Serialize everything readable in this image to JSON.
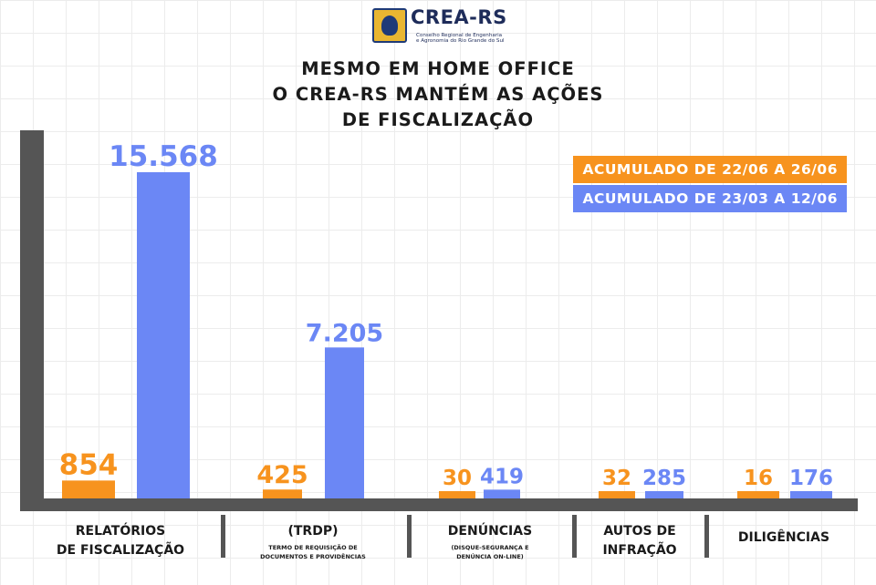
{
  "header": {
    "logo_name": "CREA-RS",
    "logo_sub_1": "Conselho Regional de Engenharia",
    "logo_sub_2": "e Agronomia do Rio Grande do Sul",
    "logo_icon": "crea-rs-seal-icon"
  },
  "title_lines": [
    "MESMO EM HOME OFFICE",
    "O CREA-RS MANTÉM AS AÇÕES",
    "DE FISCALIZAÇÃO"
  ],
  "chart_data": {
    "type": "bar",
    "categories": [
      "RELATÓRIOS DE FISCALIZAÇÃO",
      "(TRDP)",
      "DENÚNCIAS",
      "AUTOS DE INFRAÇÃO",
      "DILIGÊNCIAS"
    ],
    "category_lines": [
      [
        "RELATÓRIOS",
        "DE FISCALIZAÇÃO"
      ],
      [
        "(TRDP)"
      ],
      [
        "DENÚNCIAS"
      ],
      [
        "AUTOS DE",
        "INFRAÇÃO"
      ],
      [
        "DILIGÊNCIAS"
      ]
    ],
    "category_notes": [
      [],
      [
        "TERMO DE REQUISIÇÃO DE",
        "DOCUMENTOS E PROVIDÊNCIAS"
      ],
      [
        "(DISQUE-SEGURANÇA E",
        "DENÚNCIA ON-LINE)"
      ],
      [],
      []
    ],
    "series": [
      {
        "name": "ACUMULADO DE 22/06 A 26/06",
        "color": "#f7931e",
        "values": [
          854,
          425,
          30,
          32,
          16
        ],
        "labels": [
          "854",
          "425",
          "30",
          "32",
          "16"
        ]
      },
      {
        "name": "ACUMULADO DE 23/03 A 12/06",
        "color": "#6b87f5",
        "values": [
          15568,
          7205,
          419,
          285,
          176
        ],
        "labels": [
          "15.568",
          "7.205",
          "419",
          "285",
          "176"
        ]
      }
    ],
    "axis_color": "#555555",
    "legend_position": "top-right",
    "grid": true
  }
}
